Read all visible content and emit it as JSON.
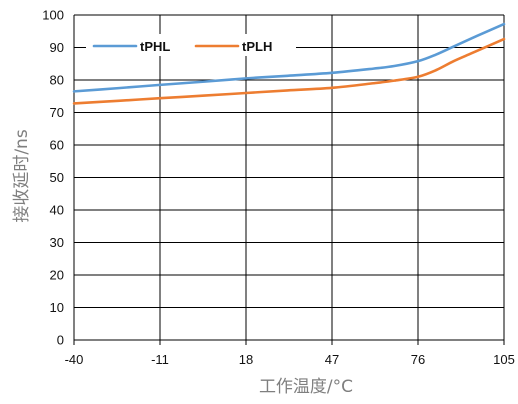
{
  "chart_data": {
    "type": "line",
    "title": "",
    "xlabel": "工作温度/°C",
    "ylabel": "接收延时/ns",
    "x_ticks": [
      -40,
      -11,
      18,
      47,
      76,
      105
    ],
    "xlim": [
      -40,
      105
    ],
    "y_ticks": [
      0,
      10,
      20,
      30,
      40,
      50,
      60,
      70,
      80,
      90,
      100
    ],
    "ylim": [
      0,
      100
    ],
    "grid": true,
    "legend_position": "top-left",
    "series": [
      {
        "name": "tPHL",
        "color": "#5b9bd5",
        "points": [
          [
            -40,
            76.5
          ],
          [
            -25,
            77.5
          ],
          [
            -11,
            78.5
          ],
          [
            4,
            79.5
          ],
          [
            18,
            80.5
          ],
          [
            32,
            81.3
          ],
          [
            47,
            82.2
          ],
          [
            61,
            83.5
          ],
          [
            68,
            84.3
          ],
          [
            76,
            85.8
          ],
          [
            82,
            87.8
          ],
          [
            88,
            90.3
          ],
          [
            94,
            92.8
          ],
          [
            100,
            95.2
          ],
          [
            105,
            97.2
          ]
        ]
      },
      {
        "name": "tPLH",
        "color": "#ed7d31",
        "points": [
          [
            -40,
            72.8
          ],
          [
            -25,
            73.6
          ],
          [
            -11,
            74.4
          ],
          [
            4,
            75.2
          ],
          [
            18,
            76.0
          ],
          [
            32,
            76.8
          ],
          [
            47,
            77.6
          ],
          [
            61,
            79.0
          ],
          [
            68,
            79.8
          ],
          [
            76,
            81.0
          ],
          [
            82,
            83.0
          ],
          [
            88,
            85.8
          ],
          [
            94,
            88.2
          ],
          [
            100,
            90.6
          ],
          [
            105,
            92.6
          ]
        ]
      }
    ]
  }
}
